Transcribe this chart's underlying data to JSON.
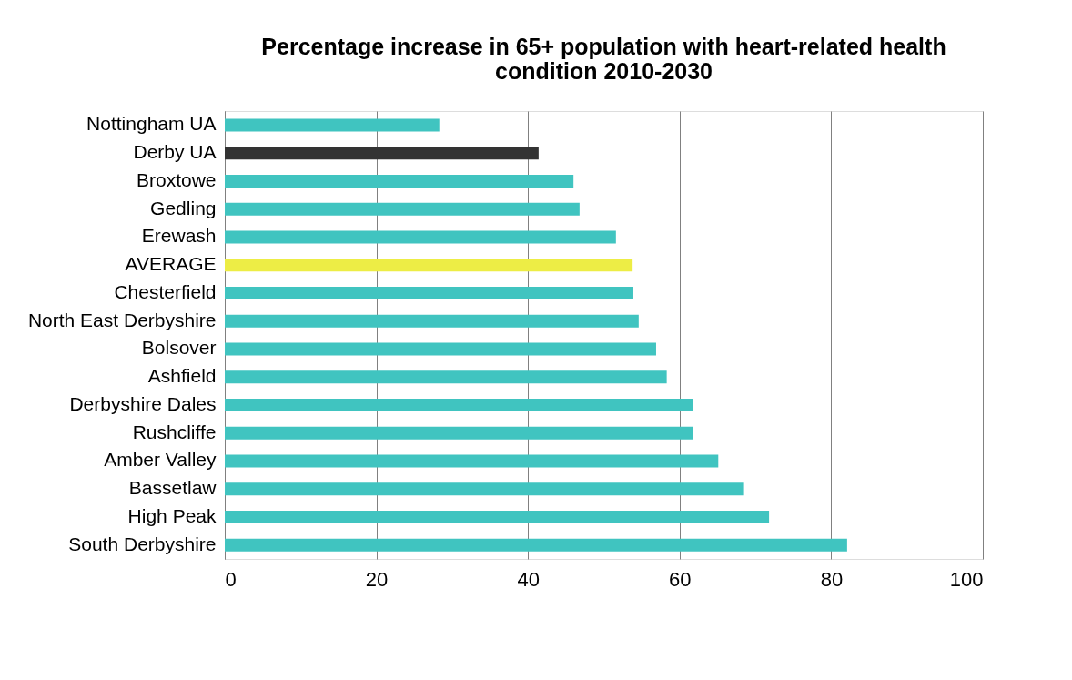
{
  "chart_data": {
    "type": "bar",
    "orientation": "horizontal",
    "title": "Percentage increase in 65+ population with heart-related health condition 2010-2030",
    "categories": [
      "Nottingham UA",
      "Derby UA",
      "Broxtowe",
      "Gedling",
      "Erewash",
      "AVERAGE",
      "Chesterfield",
      "North East Derbyshire",
      "Bolsover",
      "Ashfield",
      "Derbyshire Dales",
      "Rushcliffe",
      "Amber Valley",
      "Bassetlaw",
      "High Peak",
      "South Derbyshire"
    ],
    "values": [
      28.3,
      41.4,
      46.0,
      46.8,
      51.6,
      53.8,
      53.9,
      54.6,
      56.9,
      58.3,
      61.8,
      61.8,
      65.1,
      68.5,
      71.8,
      82.1
    ],
    "colors": [
      "#40c4c0",
      "#333333",
      "#40c4c0",
      "#40c4c0",
      "#40c4c0",
      "#eded45",
      "#40c4c0",
      "#40c4c0",
      "#40c4c0",
      "#40c4c0",
      "#40c4c0",
      "#40c4c0",
      "#40c4c0",
      "#40c4c0",
      "#40c4c0",
      "#40c4c0"
    ],
    "xlim": [
      0,
      100
    ],
    "xticks": [
      0,
      20,
      40,
      60,
      80,
      100
    ],
    "grid": "x"
  }
}
